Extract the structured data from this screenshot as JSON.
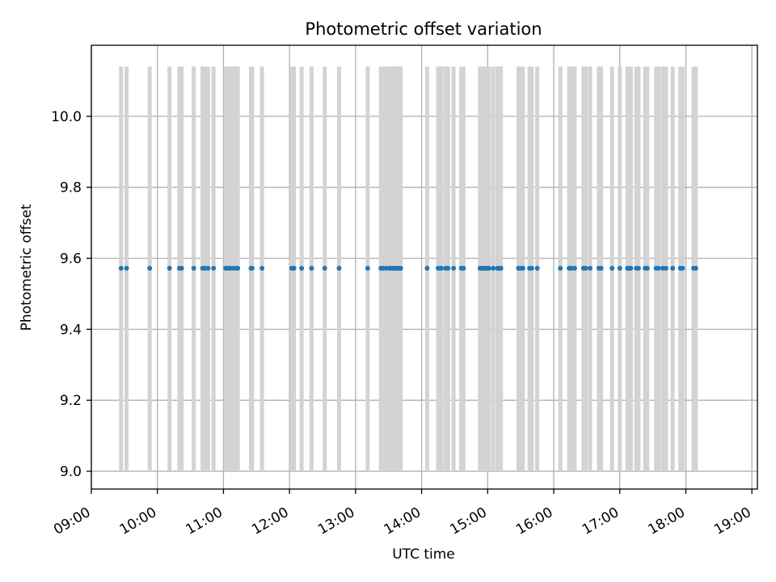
{
  "chart_data": {
    "type": "scatter",
    "title": "Photometric offset variation",
    "xlabel": "UTC time",
    "ylabel": "Photometric offset",
    "xlim": [
      "09:00",
      "19:05"
    ],
    "ylim": [
      8.95,
      10.2
    ],
    "x_ticks": [
      "09:00",
      "10:00",
      "11:00",
      "12:00",
      "13:00",
      "14:00",
      "15:00",
      "16:00",
      "17:00",
      "18:00",
      "19:00"
    ],
    "y_ticks": [
      "9.0",
      "9.2",
      "9.4",
      "9.6",
      "9.8",
      "10.0"
    ],
    "grid": true,
    "points_y": 9.572,
    "points_x": [
      "09:27",
      "09:32",
      "09:53",
      "10:11",
      "10:20",
      "10:22",
      "10:33",
      "10:41",
      "10:43",
      "10:46",
      "10:51",
      "11:02",
      "11:04",
      "11:06",
      "11:09",
      "11:12",
      "11:13",
      "11:25",
      "11:26",
      "11:35",
      "12:02",
      "12:03",
      "12:04",
      "12:11",
      "12:20",
      "12:32",
      "12:45",
      "13:11",
      "13:23",
      "13:25",
      "13:28",
      "13:31",
      "13:32",
      "13:34",
      "13:35",
      "13:37",
      "13:38",
      "13:39",
      "13:40",
      "13:41",
      "14:05",
      "14:15",
      "14:17",
      "14:18",
      "14:22",
      "14:24",
      "14:29",
      "14:36",
      "14:38",
      "14:53",
      "14:55",
      "14:56",
      "14:57",
      "14:59",
      "15:00",
      "15:01",
      "15:05",
      "15:09",
      "15:10",
      "15:12",
      "15:28",
      "15:29",
      "15:31",
      "15:32",
      "15:38",
      "15:40",
      "15:45",
      "16:06",
      "16:14",
      "16:16",
      "16:19",
      "16:27",
      "16:29",
      "16:33",
      "16:41",
      "16:43",
      "16:53",
      "17:00",
      "17:07",
      "17:08",
      "17:10",
      "17:15",
      "17:17",
      "17:23",
      "17:25",
      "17:33",
      "17:35",
      "17:39",
      "17:42",
      "17:48",
      "17:55",
      "17:57",
      "18:07",
      "18:09"
    ],
    "shaded_intervals_x": [
      "09:27",
      "09:32",
      "09:53",
      "10:11",
      "10:20",
      "10:22",
      "10:33",
      "10:41",
      "10:43",
      "10:46",
      "10:51",
      "11:02",
      "11:04",
      "11:06",
      "11:09",
      "11:12",
      "11:13",
      "11:25",
      "11:26",
      "11:35",
      "12:02",
      "12:03",
      "12:04",
      "12:11",
      "12:20",
      "12:32",
      "12:45",
      "13:11",
      "13:23",
      "13:25",
      "13:28",
      "13:31",
      "13:32",
      "13:34",
      "13:35",
      "13:37",
      "13:38",
      "13:39",
      "13:40",
      "13:41",
      "14:05",
      "14:15",
      "14:17",
      "14:18",
      "14:22",
      "14:24",
      "14:29",
      "14:36",
      "14:38",
      "14:53",
      "14:55",
      "14:56",
      "14:57",
      "14:59",
      "15:00",
      "15:01",
      "15:05",
      "15:09",
      "15:10",
      "15:12",
      "15:28",
      "15:29",
      "15:31",
      "15:32",
      "15:38",
      "15:40",
      "15:45",
      "16:06",
      "16:14",
      "16:16",
      "16:19",
      "16:27",
      "16:29",
      "16:33",
      "16:41",
      "16:43",
      "16:53",
      "17:00",
      "17:07",
      "17:08",
      "17:10",
      "17:15",
      "17:17",
      "17:23",
      "17:25",
      "17:33",
      "17:35",
      "17:39",
      "17:42",
      "17:48",
      "17:55",
      "17:57",
      "18:07",
      "18:09"
    ],
    "shaded_range_y": [
      9.0,
      10.14
    ],
    "point_color": "#1f77b4",
    "band_color": "#d3d3d3",
    "grid_color": "#b0b0b0"
  }
}
